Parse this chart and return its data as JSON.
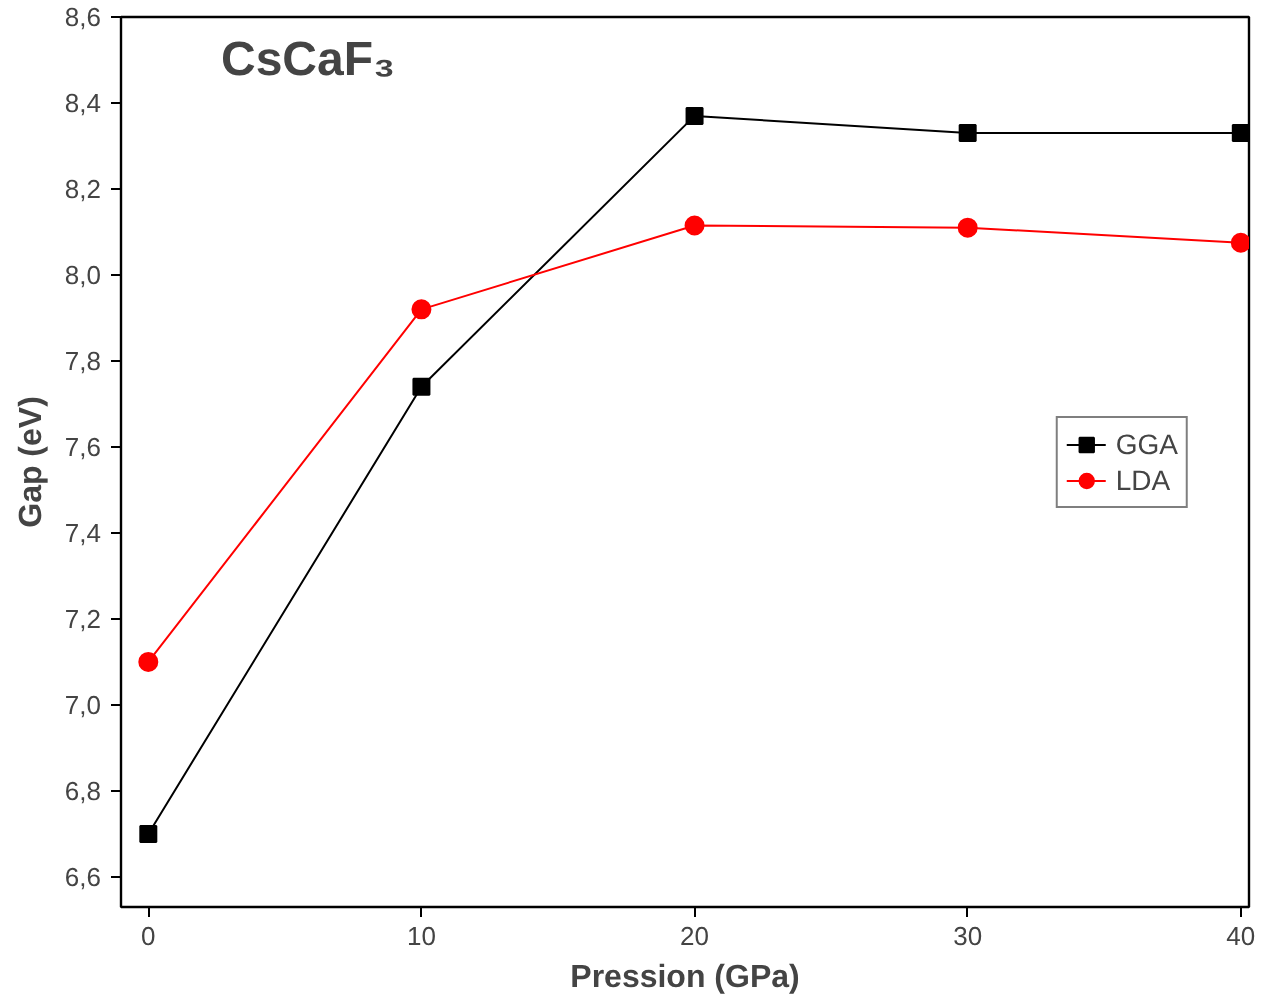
{
  "chart_data": {
    "type": "line",
    "title": "CsCaF₃",
    "xlabel": "Pression (GPa)",
    "ylabel": "Gap (eV)",
    "x": [
      0,
      10,
      20,
      30,
      40
    ],
    "series": [
      {
        "name": "GGA",
        "color": "#000000",
        "marker": "square",
        "values": [
          6.7,
          7.74,
          8.37,
          8.33,
          8.33
        ]
      },
      {
        "name": "LDA",
        "color": "#ff0000",
        "marker": "circle",
        "values": [
          7.1,
          7.92,
          8.115,
          8.11,
          8.075
        ]
      }
    ],
    "xlim": [
      -1,
      40.3
    ],
    "xticks": [
      0,
      10,
      20,
      30,
      40
    ],
    "ylim": [
      6.53,
      8.6
    ],
    "yticks": [
      {
        "value": 6.6,
        "label": "6,6"
      },
      {
        "value": 6.8,
        "label": "6,8"
      },
      {
        "value": 7.0,
        "label": "7,0"
      },
      {
        "value": 7.2,
        "label": "7,2"
      },
      {
        "value": 7.4,
        "label": "7,4"
      },
      {
        "value": 7.6,
        "label": "7,6"
      },
      {
        "value": 7.8,
        "label": "7,8"
      },
      {
        "value": 8.0,
        "label": "8,0"
      },
      {
        "value": 8.2,
        "label": "8,2"
      },
      {
        "value": 8.4,
        "label": "8,4"
      },
      {
        "value": 8.6,
        "label": "8,6"
      }
    ],
    "grid": false,
    "legend": "right",
    "line_style": "solid"
  }
}
